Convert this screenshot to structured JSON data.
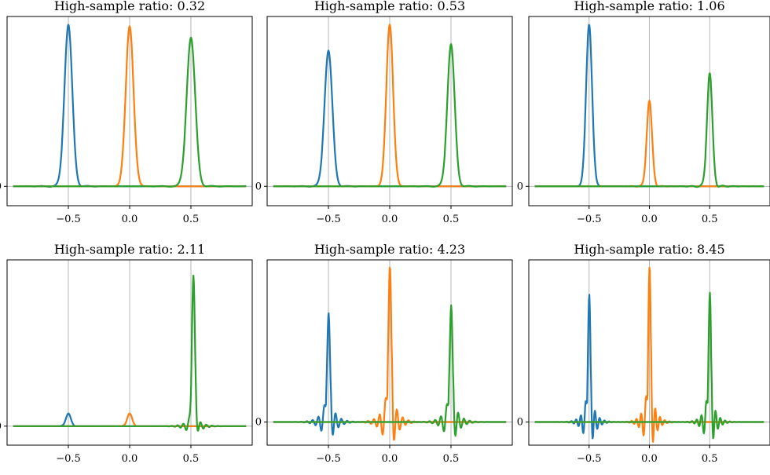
{
  "chart_data": [
    {
      "type": "line",
      "title": "High-sample ratio: 0.32",
      "xticks": [
        "−0.5",
        "0.0",
        "0.5"
      ],
      "yticks": [
        "0"
      ],
      "xlim": [
        -1.0,
        1.0
      ],
      "ylim": [
        -0.12,
        1.05
      ],
      "grid": "vertical lines at x ticks",
      "series": [
        {
          "color": "#1f77b4",
          "center": -0.5,
          "peak": 1.0,
          "width": 0.032,
          "ringing": 0.02
        },
        {
          "color": "#ff7f0e",
          "center": 0.0,
          "peak": 0.99,
          "width": 0.032,
          "ringing": 0.0
        },
        {
          "color": "#2ca02c",
          "center": 0.5,
          "peak": 0.92,
          "width": 0.035,
          "ringing": 0.02
        }
      ]
    },
    {
      "type": "line",
      "title": "High-sample ratio: 0.53",
      "xticks": [
        "−0.5",
        "0.0",
        "0.5"
      ],
      "yticks": [
        "0"
      ],
      "xlim": [
        -1.0,
        1.0
      ],
      "ylim": [
        -0.12,
        1.05
      ],
      "grid": "vertical lines at x ticks",
      "series": [
        {
          "color": "#1f77b4",
          "center": -0.5,
          "peak": 0.84,
          "width": 0.032,
          "ringing": 0.02
        },
        {
          "color": "#ff7f0e",
          "center": 0.0,
          "peak": 1.0,
          "width": 0.028,
          "ringing": 0.0
        },
        {
          "color": "#2ca02c",
          "center": 0.5,
          "peak": 0.88,
          "width": 0.03,
          "ringing": 0.02
        }
      ]
    },
    {
      "type": "line",
      "title": "High-sample ratio: 1.06",
      "xticks": [
        "−0.5",
        "0.0",
        "0.5"
      ],
      "yticks": [
        "0"
      ],
      "xlim": [
        -1.0,
        1.0
      ],
      "ylim": [
        -0.12,
        1.05
      ],
      "grid": "vertical lines at x ticks",
      "series": [
        {
          "color": "#1f77b4",
          "center": -0.5,
          "peak": 1.0,
          "width": 0.025,
          "ringing": 0.0
        },
        {
          "color": "#ff7f0e",
          "center": 0.0,
          "peak": 0.53,
          "width": 0.022,
          "ringing": 0.03
        },
        {
          "color": "#2ca02c",
          "center": 0.5,
          "peak": 0.7,
          "width": 0.022,
          "ringing": 0.04
        }
      ]
    },
    {
      "type": "line",
      "title": "High-sample ratio: 2.11",
      "xticks": [
        "−0.5",
        "0.0",
        "0.5"
      ],
      "yticks": [
        "0"
      ],
      "xlim": [
        -1.0,
        1.0
      ],
      "ylim": [
        -0.12,
        1.05
      ],
      "grid": "vertical lines at x ticks",
      "series": [
        {
          "color": "#1f77b4",
          "center": -0.5,
          "peak": 0.08,
          "width": 0.02,
          "ringing": 0.06
        },
        {
          "color": "#ff7f0e",
          "center": 0.0,
          "peak": 0.08,
          "width": 0.02,
          "ringing": 0.06
        },
        {
          "color": "#2ca02c",
          "center": 0.52,
          "peak": 0.95,
          "width": 0.012,
          "ringing": 0.18
        }
      ]
    },
    {
      "type": "line",
      "title": "High-sample ratio: 4.23",
      "xticks": [
        "−0.5",
        "0.0",
        "0.5"
      ],
      "yticks": [
        "0"
      ],
      "xlim": [
        -1.0,
        1.0
      ],
      "ylim": [
        -0.15,
        1.05
      ],
      "grid": "vertical lines at x ticks",
      "series": [
        {
          "color": "#1f77b4",
          "center": -0.5,
          "peak": 0.7,
          "width": 0.012,
          "ringing": 0.55
        },
        {
          "color": "#ff7f0e",
          "center": 0.0,
          "peak": 1.0,
          "width": 0.012,
          "ringing": 0.55
        },
        {
          "color": "#2ca02c",
          "center": 0.5,
          "peak": 0.75,
          "width": 0.012,
          "ringing": 0.55
        }
      ]
    },
    {
      "type": "line",
      "title": "High-sample ratio: 8.45",
      "xticks": [
        "−0.5",
        "0.0",
        "0.5"
      ],
      "yticks": [
        "0"
      ],
      "xlim": [
        -1.0,
        1.0
      ],
      "ylim": [
        -0.15,
        1.05
      ],
      "grid": "vertical lines at x ticks",
      "series": [
        {
          "color": "#1f77b4",
          "center": -0.5,
          "peak": 0.82,
          "width": 0.01,
          "ringing": 0.6
        },
        {
          "color": "#ff7f0e",
          "center": 0.0,
          "peak": 1.0,
          "width": 0.01,
          "ringing": 0.6
        },
        {
          "color": "#2ca02c",
          "center": 0.5,
          "peak": 0.83,
          "width": 0.01,
          "ringing": 0.6
        }
      ]
    }
  ]
}
